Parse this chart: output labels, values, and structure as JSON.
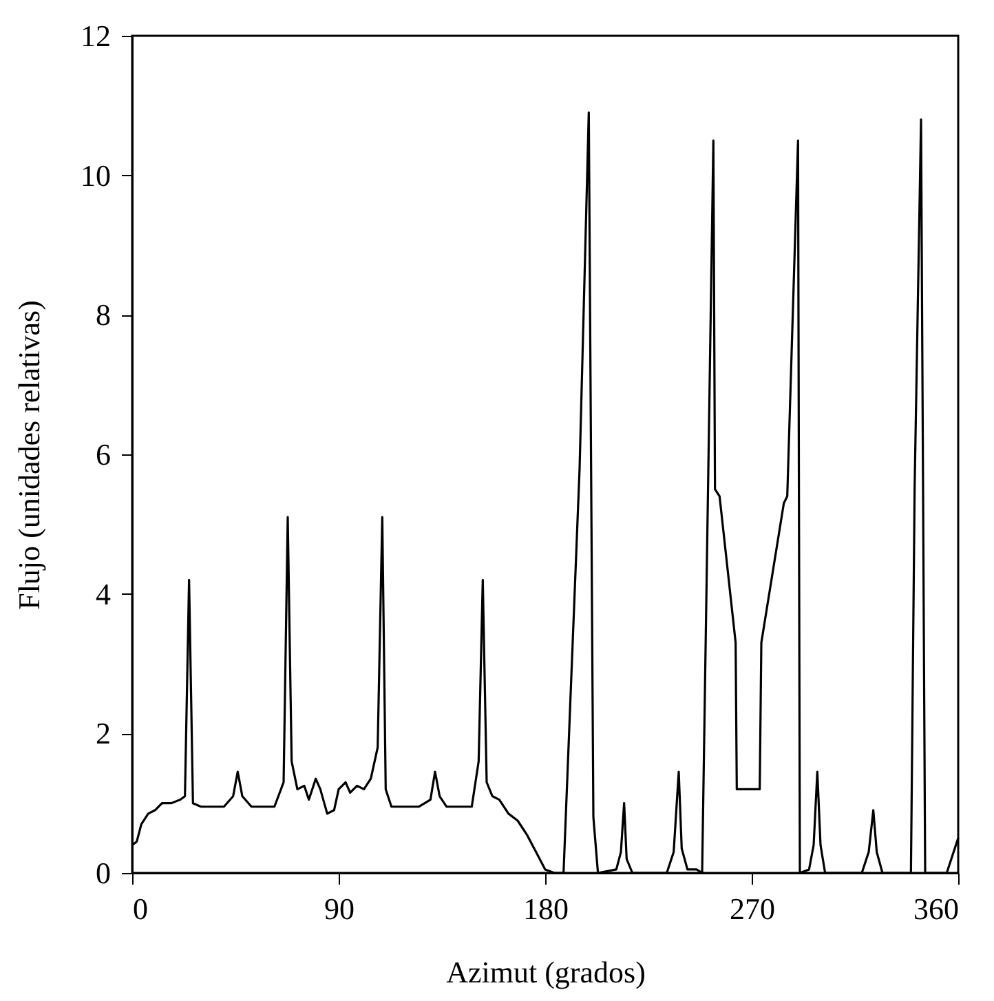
{
  "chart_data": {
    "type": "line",
    "xlabel": "Azimut (grados)",
    "ylabel": "Flujo (unidades relativas)",
    "xlim": [
      0,
      360
    ],
    "xticks": [
      0,
      90,
      180,
      270,
      360
    ],
    "ylim": [
      0,
      12
    ],
    "yticks": [
      0,
      2,
      4,
      6,
      8,
      10,
      12
    ],
    "grid": false,
    "marker": "none",
    "line_style": "solid",
    "series": [
      {
        "color": "#000000",
        "x": [
          0,
          2,
          4,
          7,
          10,
          13,
          17,
          21,
          23,
          24.8,
          26.5,
          30,
          40,
          44,
          46,
          48,
          52,
          62,
          66,
          67.8,
          69.5,
          72,
          75,
          77,
          80,
          82,
          85,
          88,
          90,
          93,
          95,
          98,
          101,
          104,
          107,
          109,
          110.5,
          113,
          125,
          130,
          132,
          134,
          137,
          148,
          151,
          152.8,
          154.5,
          157,
          160,
          164,
          168,
          172,
          176,
          180,
          184,
          188,
          195,
          199,
          201,
          203,
          211,
          213,
          214.4,
          215.5,
          218,
          233,
          236,
          238.2,
          239.5,
          242,
          246,
          248.4,
          253.3,
          254,
          256,
          263,
          263.5,
          273.5,
          274.2,
          284,
          285.5,
          290.2,
          291,
          295,
          297,
          298.6,
          300,
          302,
          318,
          321,
          323,
          324.5,
          327,
          339.4,
          341,
          343.8,
          345.6,
          355,
          358,
          360
        ],
        "values": [
          0.4,
          0.45,
          0.7,
          0.85,
          0.9,
          1.0,
          1.0,
          1.05,
          1.1,
          4.2,
          1.0,
          0.95,
          0.95,
          1.1,
          1.45,
          1.1,
          0.95,
          0.95,
          1.3,
          5.1,
          1.6,
          1.2,
          1.25,
          1.05,
          1.35,
          1.2,
          0.85,
          0.9,
          1.2,
          1.3,
          1.15,
          1.25,
          1.2,
          1.35,
          1.8,
          5.1,
          1.2,
          0.95,
          0.95,
          1.05,
          1.45,
          1.1,
          0.95,
          0.95,
          1.6,
          4.2,
          1.3,
          1.1,
          1.05,
          0.85,
          0.75,
          0.55,
          0.3,
          0.05,
          0,
          0,
          5.8,
          10.9,
          0.8,
          0,
          0.05,
          0.3,
          1.0,
          0.2,
          0,
          0,
          0.3,
          1.45,
          0.35,
          0.05,
          0.05,
          0,
          10.5,
          5.5,
          5.4,
          3.3,
          1.2,
          1.2,
          3.3,
          5.3,
          5.4,
          10.5,
          0,
          0.05,
          0.4,
          1.45,
          0.4,
          0,
          0,
          0.3,
          0.9,
          0.3,
          0,
          0,
          5.5,
          10.8,
          0,
          0,
          0.3,
          0.5
        ]
      }
    ]
  }
}
